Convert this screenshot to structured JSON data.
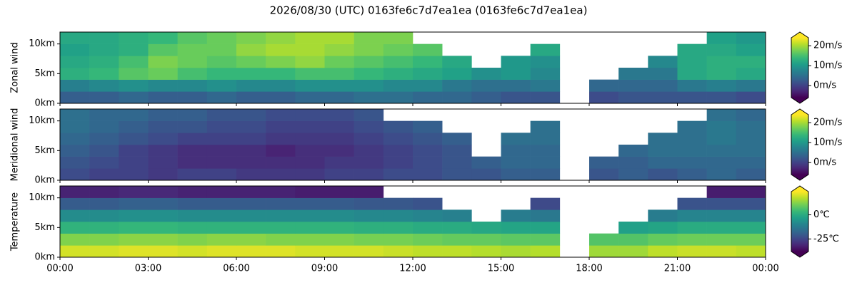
{
  "chart_data": [
    {
      "type": "heatmap",
      "title": "2026/08/30 (UTC) 0163fe6c7d7ea1ea (0163fe6c7d7ea1ea)",
      "ylabel": "Zonal wind",
      "colormap": "viridis",
      "xbins": [
        0,
        1,
        2,
        3,
        4,
        5,
        6,
        7,
        8,
        9,
        10,
        11,
        12,
        13,
        14,
        15,
        16,
        17,
        18,
        19,
        20,
        21,
        22,
        23,
        24
      ],
      "ybins": [
        0,
        2,
        4,
        6,
        8,
        10,
        12
      ],
      "ylim": [
        0,
        12
      ],
      "yticks": [
        {
          "value": 0,
          "label": "0km"
        },
        {
          "value": 5,
          "label": "5km"
        },
        {
          "value": 10,
          "label": "10km"
        }
      ],
      "values": [
        [
          3,
          3,
          4,
          3,
          3,
          4,
          3,
          3,
          4,
          4,
          5,
          5,
          4,
          4,
          3,
          2,
          2,
          null,
          1,
          2,
          2,
          2,
          2,
          1
        ],
        [
          7,
          8,
          9,
          8,
          8,
          9,
          8,
          8,
          9,
          9,
          9,
          8,
          8,
          6,
          5,
          5,
          6,
          null,
          4,
          4,
          4,
          6,
          7,
          6
        ],
        [
          13,
          14,
          16,
          17,
          15,
          14,
          14,
          14,
          15,
          15,
          14,
          13,
          12,
          11,
          9,
          10,
          8,
          null,
          null,
          6,
          6,
          12,
          13,
          12
        ],
        [
          12,
          13,
          15,
          18,
          17,
          16,
          17,
          18,
          19,
          17,
          16,
          15,
          14,
          12,
          null,
          10,
          9,
          null,
          null,
          null,
          8,
          12,
          13,
          13
        ],
        [
          11,
          12,
          13,
          16,
          17,
          17,
          19,
          20,
          20,
          19,
          18,
          17,
          16,
          null,
          null,
          null,
          12,
          null,
          null,
          null,
          null,
          12,
          12,
          11
        ],
        [
          12,
          12,
          13,
          14,
          16,
          17,
          18,
          19,
          20,
          20,
          18,
          18,
          null,
          null,
          null,
          null,
          null,
          null,
          null,
          null,
          null,
          null,
          11,
          10
        ]
      ],
      "colorbar": {
        "lim": [
          -6,
          24
        ],
        "ticks": [
          {
            "value": 0,
            "label": "0m/s"
          },
          {
            "value": 10,
            "label": "10m/s"
          },
          {
            "value": 20,
            "label": "20m/s"
          }
        ]
      }
    },
    {
      "type": "heatmap",
      "ylabel": "Meridional wind",
      "colormap": "viridis",
      "xbins": [
        0,
        1,
        2,
        3,
        4,
        5,
        6,
        7,
        8,
        9,
        10,
        11,
        12,
        13,
        14,
        15,
        16,
        17,
        18,
        19,
        20,
        21,
        22,
        23,
        24
      ],
      "ybins": [
        0,
        2,
        4,
        6,
        8,
        10,
        12
      ],
      "ylim": [
        0,
        12
      ],
      "yticks": [
        {
          "value": 0,
          "label": "0km"
        },
        {
          "value": 5,
          "label": "5km"
        },
        {
          "value": 10,
          "label": "10km"
        }
      ],
      "values": [
        [
          1,
          0,
          0,
          -1,
          0,
          0,
          -1,
          -1,
          -1,
          0,
          0,
          1,
          1,
          2,
          2,
          3,
          3,
          null,
          2,
          3,
          2,
          3,
          4,
          3
        ],
        [
          2,
          1,
          0,
          -1,
          -2,
          -2,
          -2,
          -2,
          -2,
          -1,
          -1,
          0,
          1,
          2,
          3,
          4,
          4,
          null,
          3,
          3,
          4,
          4,
          4,
          4
        ],
        [
          3,
          2,
          0,
          -1,
          -2,
          -2,
          -2,
          -3,
          -2,
          -2,
          -1,
          0,
          1,
          2,
          null,
          4,
          4,
          null,
          null,
          4,
          5,
          5,
          5,
          5
        ],
        [
          4,
          3,
          2,
          1,
          0,
          0,
          0,
          -1,
          -1,
          -1,
          0,
          1,
          2,
          3,
          null,
          5,
          5,
          null,
          null,
          null,
          5,
          5,
          6,
          5
        ],
        [
          5,
          4,
          3,
          2,
          2,
          1,
          1,
          0,
          0,
          0,
          1,
          2,
          3,
          null,
          null,
          null,
          5,
          null,
          null,
          null,
          null,
          5,
          6,
          5
        ],
        [
          5,
          4,
          4,
          3,
          3,
          2,
          2,
          1,
          1,
          1,
          2,
          null,
          null,
          null,
          null,
          null,
          null,
          null,
          null,
          null,
          null,
          null,
          5,
          4
        ]
      ],
      "colorbar": {
        "lim": [
          -6,
          24
        ],
        "ticks": [
          {
            "value": 0,
            "label": "0m/s"
          },
          {
            "value": 10,
            "label": "10m/s"
          },
          {
            "value": 20,
            "label": "20m/s"
          }
        ]
      }
    },
    {
      "type": "heatmap",
      "ylabel": "Temperature",
      "colormap": "viridis",
      "xbins": [
        0,
        1,
        2,
        3,
        4,
        5,
        6,
        7,
        8,
        9,
        10,
        11,
        12,
        13,
        14,
        15,
        16,
        17,
        18,
        19,
        20,
        21,
        22,
        23,
        24
      ],
      "ybins": [
        0,
        2,
        4,
        6,
        8,
        10,
        12
      ],
      "ylim": [
        0,
        12
      ],
      "xlim": [
        0,
        24
      ],
      "xticks": [
        {
          "value": 0,
          "label": "00:00"
        },
        {
          "value": 3,
          "label": "03:00"
        },
        {
          "value": 6,
          "label": "06:00"
        },
        {
          "value": 9,
          "label": "09:00"
        },
        {
          "value": 12,
          "label": "12:00"
        },
        {
          "value": 15,
          "label": "15:00"
        },
        {
          "value": 18,
          "label": "18:00"
        },
        {
          "value": 21,
          "label": "21:00"
        },
        {
          "value": 24,
          "label": "00:00"
        }
      ],
      "yticks": [
        {
          "value": 0,
          "label": "0km"
        },
        {
          "value": 5,
          "label": "5km"
        },
        {
          "value": 10,
          "label": "10km"
        }
      ],
      "values": [
        [
          20,
          20,
          21,
          21,
          20,
          21,
          21,
          21,
          20,
          20,
          20,
          19,
          18,
          18,
          17,
          16,
          17,
          null,
          15,
          15,
          18,
          19,
          19,
          18
        ],
        [
          12,
          12,
          13,
          13,
          12,
          13,
          13,
          12,
          12,
          12,
          11,
          11,
          10,
          9,
          9,
          8,
          8,
          null,
          7,
          7,
          9,
          10,
          10,
          10
        ],
        [
          2,
          2,
          3,
          3,
          2,
          2,
          2,
          2,
          2,
          2,
          1,
          1,
          0,
          0,
          -1,
          -2,
          -2,
          null,
          null,
          -3,
          -2,
          0,
          0,
          0
        ],
        [
          -8,
          -8,
          -7,
          -7,
          -8,
          -8,
          -8,
          -8,
          -8,
          -8,
          -9,
          -9,
          -10,
          -11,
          null,
          -12,
          -13,
          null,
          null,
          null,
          -12,
          -10,
          -10,
          -10
        ],
        [
          -20,
          -20,
          -19,
          -19,
          -20,
          -20,
          -20,
          -20,
          -20,
          -20,
          -21,
          -21,
          -22,
          null,
          null,
          null,
          -24,
          null,
          null,
          null,
          null,
          -22,
          -22,
          -22
        ],
        [
          -32,
          -32,
          -31,
          -31,
          -32,
          -32,
          -32,
          -32,
          -33,
          -33,
          -33,
          null,
          null,
          null,
          null,
          null,
          null,
          null,
          null,
          null,
          null,
          null,
          -33,
          -33
        ]
      ],
      "colorbar": {
        "lim": [
          -38,
          24
        ],
        "ticks": [
          {
            "value": -25,
            "label": "-25℃"
          },
          {
            "value": 0,
            "label": "0℃"
          }
        ]
      }
    }
  ]
}
